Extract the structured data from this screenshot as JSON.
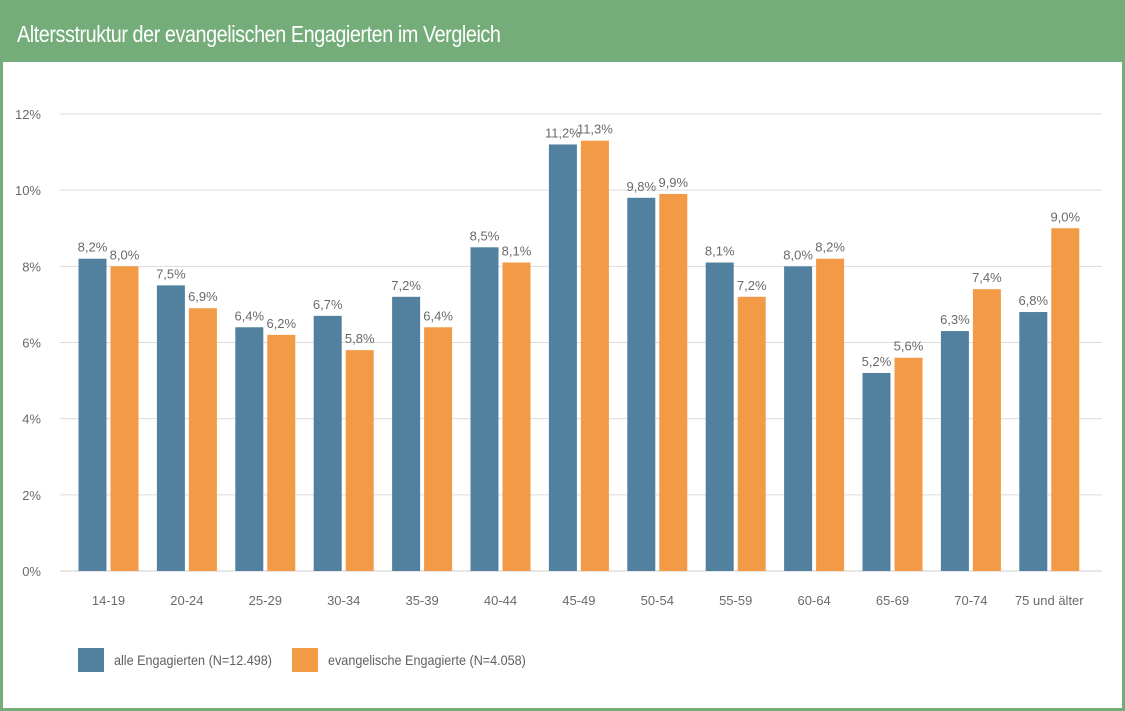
{
  "title": "Altersstruktur der evangelischen Engagierten im Vergleich",
  "colors": {
    "header": "#74ad79",
    "series1": "#52819f",
    "series2": "#f39a47",
    "grid": "#dcdcdc",
    "text": "#6a6a6a"
  },
  "chart_data": {
    "type": "bar",
    "categories": [
      "14-19",
      "20-24",
      "25-29",
      "30-34",
      "35-39",
      "40-44",
      "45-49",
      "50-54",
      "55-59",
      "60-64",
      "65-69",
      "70-74",
      "75 und älter"
    ],
    "series": [
      {
        "name": "alle Engagierten (N=12.498)",
        "values": [
          8.2,
          7.5,
          6.4,
          6.7,
          7.2,
          8.5,
          11.2,
          9.8,
          8.1,
          8.0,
          5.2,
          6.3,
          6.8
        ],
        "labels": [
          "8,2%",
          "7,5%",
          "6,4%",
          "6,7%",
          "7,2%",
          "8,5%",
          "11,2%",
          "9,8%",
          "8,1%",
          "8,0%",
          "5,2%",
          "6,3%",
          "6,8%"
        ]
      },
      {
        "name": "evangelische Engagierte (N=4.058)",
        "values": [
          8.0,
          6.9,
          6.2,
          5.8,
          6.4,
          8.1,
          11.3,
          9.9,
          7.2,
          8.2,
          5.6,
          7.4,
          9.0
        ],
        "labels": [
          "8,0%",
          "6,9%",
          "6,2%",
          "5,8%",
          "6,4%",
          "8,1%",
          "11,3%",
          "9,9%",
          "7,2%",
          "8,2%",
          "5,6%",
          "7,4%",
          "9,0%"
        ]
      }
    ],
    "yticks": [
      0,
      2,
      4,
      6,
      8,
      10,
      12
    ],
    "ytick_labels": [
      "0%",
      "2%",
      "4%",
      "6%",
      "8%",
      "10%",
      "12%"
    ],
    "ylim": [
      0,
      12
    ],
    "grid": true,
    "legend": "bottom-left"
  }
}
